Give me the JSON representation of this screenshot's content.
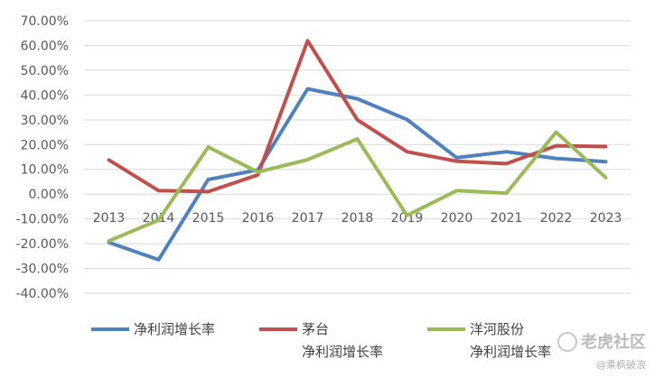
{
  "chart_data": {
    "type": "line",
    "x": [
      "2013",
      "2014",
      "2015",
      "2016",
      "2017",
      "2018",
      "2019",
      "2020",
      "2021",
      "2022",
      "2023"
    ],
    "yticks": [
      "70.00%",
      "60.00%",
      "50.00%",
      "40.00%",
      "30.00%",
      "20.00%",
      "10.00%",
      "0.00%",
      "-10.00%",
      "-20.00%",
      "-30.00%",
      "-40.00%"
    ],
    "ylim": [
      -40,
      70
    ],
    "grid": true,
    "legend": "bottom",
    "series": [
      {
        "name": "净利润增长率",
        "color": "#4f81bd",
        "values": [
          -19.5,
          -26.5,
          5.9,
          9.8,
          42.5,
          38.5,
          30.1,
          14.7,
          17.1,
          14.4,
          13.1
        ]
      },
      {
        "name": "茅台\n净利润增长率",
        "color": "#c0504d",
        "values": [
          13.8,
          1.4,
          1.0,
          7.8,
          61.9,
          30.0,
          17.1,
          13.3,
          12.3,
          19.5,
          19.2
        ]
      },
      {
        "name": "洋河股份\n净利润增长率",
        "color": "#9bbb59",
        "values": [
          -18.9,
          -10.5,
          19.0,
          8.9,
          13.9,
          22.3,
          -8.6,
          1.4,
          0.4,
          25.0,
          6.7
        ]
      }
    ]
  },
  "watermark": {
    "logo": "老虎社区",
    "user": "@乘枫破浪"
  }
}
